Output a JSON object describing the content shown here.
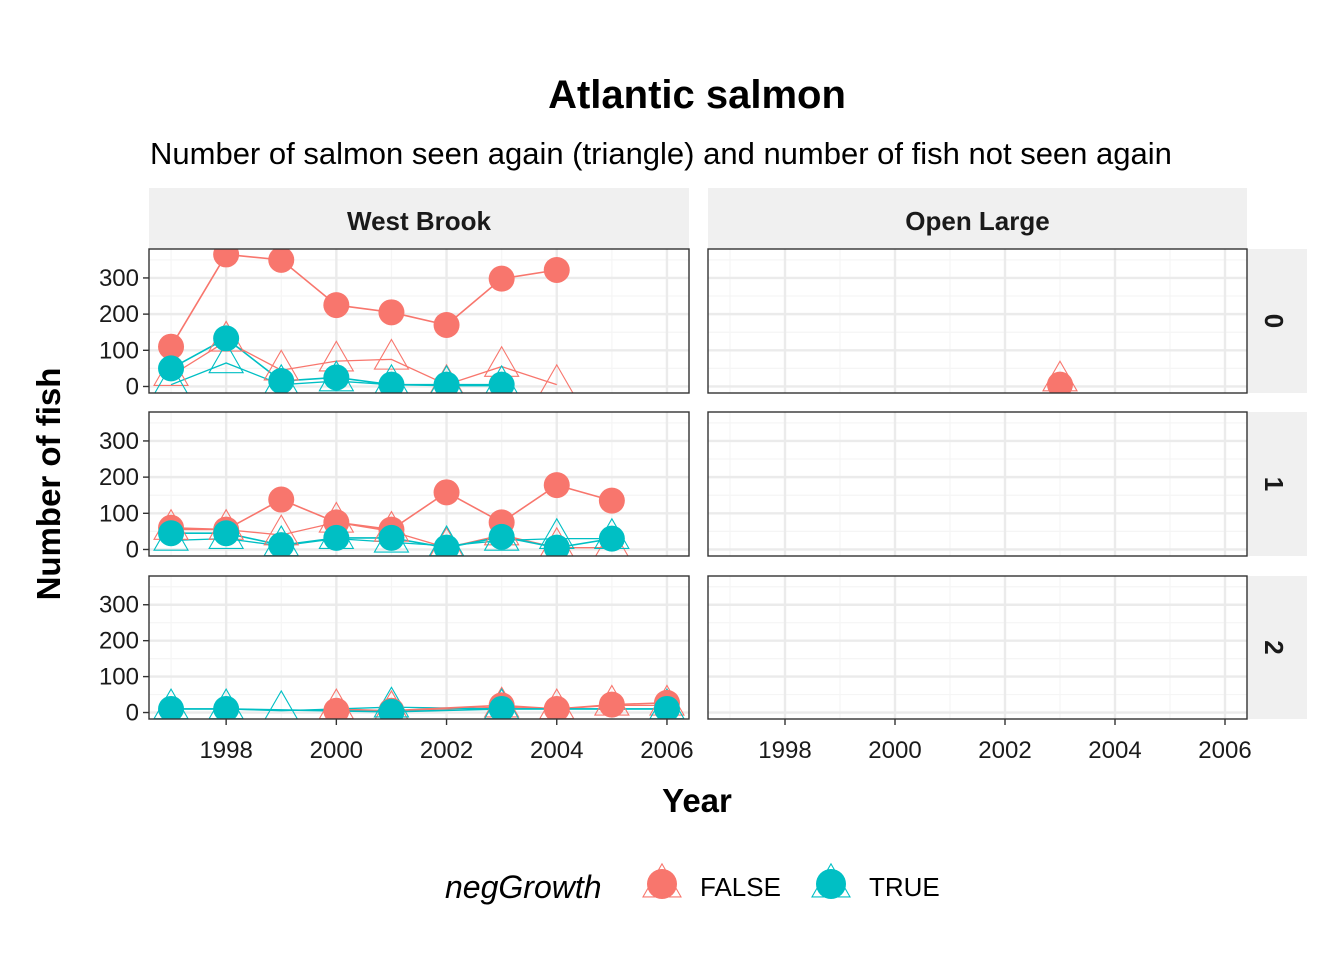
{
  "colors": {
    "FALSE": "#F8766D",
    "TRUE": "#00BFC4"
  },
  "chart_data": {
    "type": "line",
    "title": "Atlantic salmon",
    "subtitle": "Number of salmon seen again (triangle) and number of fish not seen again",
    "xlabel": "Year",
    "ylabel": "Number of fish",
    "xlim": [
      1996.6,
      2006.4
    ],
    "ylim": [
      -18,
      380
    ],
    "x_ticks": [
      "1998",
      "2000",
      "2002",
      "2004",
      "2006"
    ],
    "y_ticks": [
      "0",
      "100",
      "200",
      "300"
    ],
    "grid": true,
    "legend_position": "bottom",
    "col_facets": [
      "West Brook",
      "Open Large"
    ],
    "row_facets": [
      "0",
      "1",
      "2"
    ],
    "legend": {
      "title": "negGrowth",
      "entries": [
        "FALSE",
        "TRUE"
      ]
    },
    "series": [
      {
        "name": "FALSE",
        "row": 0,
        "col": 0,
        "kind": "not seen again",
        "x": [
          1997,
          1998,
          1999,
          2000,
          2001,
          2002,
          2003,
          2004
        ],
        "y": [
          110,
          365,
          350,
          225,
          205,
          170,
          298,
          322
        ]
      },
      {
        "name": "FALSE",
        "row": 0,
        "col": 0,
        "kind": "seen again",
        "x": [
          1997,
          1998,
          1999,
          2000,
          2001,
          2002,
          2003,
          2004
        ],
        "y": [
          30,
          125,
          45,
          70,
          75,
          5,
          55,
          5
        ]
      },
      {
        "name": "TRUE",
        "row": 0,
        "col": 0,
        "kind": "not seen again",
        "x": [
          1997,
          1998,
          1999,
          2000,
          2001,
          2002,
          2003
        ],
        "y": [
          50,
          133,
          15,
          25,
          5,
          5,
          5
        ]
      },
      {
        "name": "TRUE",
        "row": 0,
        "col": 0,
        "kind": "seen again",
        "x": [
          1997,
          1998,
          1999,
          2000,
          2001,
          2002,
          2003
        ],
        "y": [
          5,
          65,
          5,
          15,
          5,
          2,
          2
        ]
      },
      {
        "name": "FALSE",
        "row": 0,
        "col": 1,
        "kind": "not seen again",
        "x": [
          2003
        ],
        "y": [
          5
        ]
      },
      {
        "name": "FALSE",
        "row": 0,
        "col": 1,
        "kind": "seen again",
        "x": [
          2003
        ],
        "y": [
          15
        ]
      },
      {
        "name": "FALSE",
        "row": 1,
        "col": 0,
        "kind": "not seen again",
        "x": [
          1997,
          1998,
          1999,
          2000,
          2001,
          2002,
          2003,
          2004,
          2005
        ],
        "y": [
          60,
          55,
          138,
          75,
          55,
          158,
          75,
          178,
          135
        ]
      },
      {
        "name": "FALSE",
        "row": 1,
        "col": 0,
        "kind": "seen again",
        "x": [
          1997,
          1998,
          1999,
          2000,
          2001,
          2002,
          2003,
          2004,
          2005
        ],
        "y": [
          55,
          55,
          40,
          75,
          50,
          5,
          40,
          5,
          5
        ]
      },
      {
        "name": "TRUE",
        "row": 1,
        "col": 0,
        "kind": "not seen again",
        "x": [
          1997,
          1998,
          1999,
          2000,
          2001,
          2002,
          2003,
          2004,
          2005
        ],
        "y": [
          45,
          45,
          12,
          32,
          32,
          5,
          35,
          5,
          30
        ]
      },
      {
        "name": "TRUE",
        "row": 1,
        "col": 0,
        "kind": "seen again",
        "x": [
          1997,
          1998,
          1999,
          2000,
          2001,
          2002,
          2003,
          2004,
          2005
        ],
        "y": [
          25,
          30,
          10,
          30,
          20,
          10,
          25,
          30,
          30
        ]
      },
      {
        "name": "FALSE",
        "row": 2,
        "col": 0,
        "kind": "not seen again",
        "x": [
          2000,
          2001,
          2003,
          2004,
          2005,
          2006
        ],
        "y": [
          5,
          5,
          20,
          10,
          22,
          27
        ]
      },
      {
        "name": "FALSE",
        "row": 2,
        "col": 0,
        "kind": "seen again",
        "x": [
          2000,
          2001,
          2003,
          2004,
          2005,
          2006
        ],
        "y": [
          10,
          5,
          15,
          10,
          20,
          20
        ]
      },
      {
        "name": "TRUE",
        "row": 2,
        "col": 0,
        "kind": "not seen again",
        "x": [
          1997,
          1998,
          2001,
          2003,
          2006
        ],
        "y": [
          10,
          10,
          2,
          10,
          10
        ]
      },
      {
        "name": "TRUE",
        "row": 2,
        "col": 0,
        "kind": "seen again",
        "x": [
          1997,
          1998,
          1999,
          2001,
          2003,
          2006
        ],
        "y": [
          10,
          10,
          5,
          15,
          10,
          10
        ]
      }
    ]
  }
}
